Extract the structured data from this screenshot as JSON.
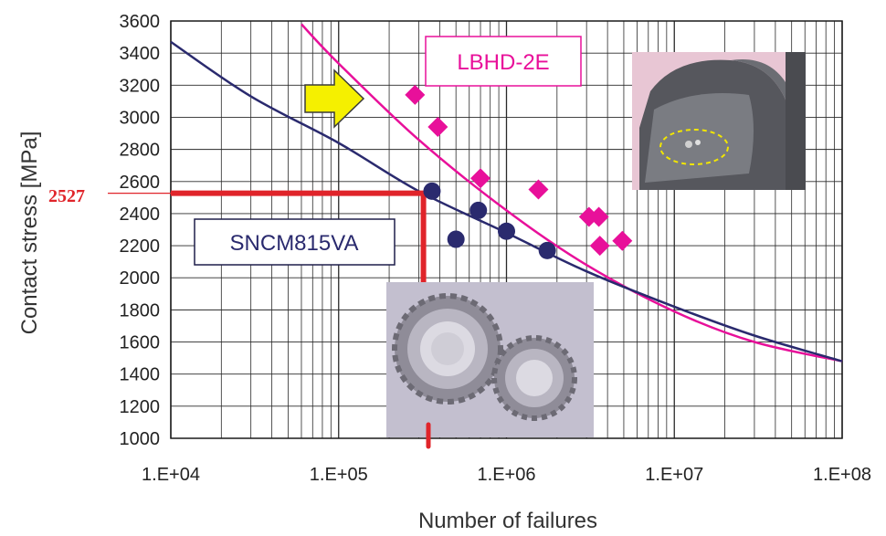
{
  "chart_data": {
    "type": "scatter",
    "title": "",
    "xlabel": "Number of failures",
    "ylabel": "Contact stress [MPa]",
    "x_scale": "log",
    "xlim": [
      10000,
      100000000
    ],
    "ylim": [
      1000,
      3600
    ],
    "grid": true,
    "x_ticks": [
      "1.E+04",
      "1.E+05",
      "1.E+06",
      "1.E+07",
      "1.E+08"
    ],
    "y_ticks": [
      "1000",
      "1200",
      "1400",
      "1600",
      "1800",
      "2000",
      "2200",
      "2400",
      "2600",
      "2800",
      "3000",
      "3200",
      "3400",
      "3600"
    ],
    "series": [
      {
        "name": "LBHD-2E",
        "color": "#e8109a",
        "marker": "diamond",
        "points": [
          [
            285000,
            3140
          ],
          [
            390000,
            2940
          ],
          [
            700000,
            2620
          ],
          [
            1550000,
            2550
          ],
          [
            3100000,
            2380
          ],
          [
            3550000,
            2380
          ],
          [
            3600000,
            2200
          ],
          [
            4900000,
            2230
          ]
        ],
        "trend_curve": [
          [
            60000,
            3580
          ],
          [
            100000,
            3335
          ],
          [
            300000,
            2860
          ],
          [
            1000000,
            2420
          ],
          [
            3000000,
            2080
          ],
          [
            10000000,
            1790
          ],
          [
            30000000,
            1600
          ],
          [
            100000000,
            1480
          ]
        ]
      },
      {
        "name": "SNCM815VA",
        "color": "#2a2a6e",
        "marker": "circle",
        "points": [
          [
            360000,
            2540
          ],
          [
            500000,
            2240
          ],
          [
            680000,
            2420
          ],
          [
            1000000,
            2290
          ],
          [
            1750000,
            2170
          ]
        ],
        "trend_curve": [
          [
            10000,
            3470
          ],
          [
            30000,
            3130
          ],
          [
            100000,
            2840
          ],
          [
            300000,
            2540
          ],
          [
            1000000,
            2280
          ],
          [
            3000000,
            2040
          ],
          [
            10000000,
            1820
          ],
          [
            30000000,
            1640
          ],
          [
            100000000,
            1480
          ]
        ]
      }
    ],
    "annotations": {
      "marked_value": "2527",
      "marked_value_number": 2527,
      "marked_cycles": 320000,
      "marker_color": "#e0242a"
    },
    "photos": [
      "gear-tooth-damage-photo",
      "gear-pair-photo"
    ],
    "arrow_color": "#f5f000"
  }
}
